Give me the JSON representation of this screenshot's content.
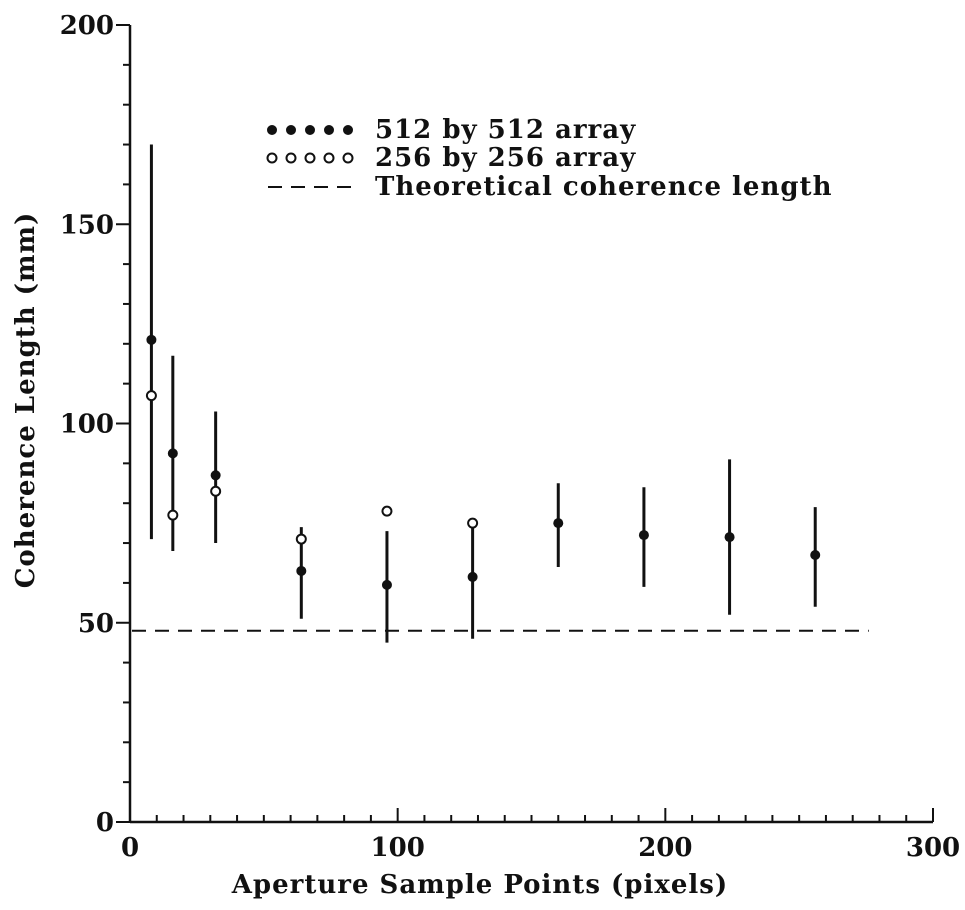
{
  "chart_data": {
    "type": "scatter",
    "xlabel": "Aperture Sample Points (pixels)",
    "ylabel": "Coherence Length (mm)",
    "xlim": [
      0,
      300
    ],
    "ylim": [
      0,
      200
    ],
    "x_ticks": [
      "0",
      "100",
      "200",
      "300"
    ],
    "y_ticks": [
      "0",
      "50",
      "100",
      "150",
      "200"
    ],
    "x_minor_step": 10,
    "y_minor_step": 10,
    "grid": false,
    "legend_position": "top-center",
    "legend": [
      {
        "label": "512 by 512 array",
        "marker": "filled-circle"
      },
      {
        "label": "256 by 256 array",
        "marker": "open-circle"
      },
      {
        "label": "Theoretical coherence length",
        "marker": "dashed-line"
      }
    ],
    "series": [
      {
        "name": "512 by 512 array",
        "marker": "filled-circle",
        "points": [
          {
            "x": 8,
            "y": 121,
            "err_low": 71,
            "err_high": 170
          },
          {
            "x": 16,
            "y": 92.5,
            "err_low": 68,
            "err_high": 117
          },
          {
            "x": 32,
            "y": 87,
            "err_low": 70,
            "err_high": 103
          },
          {
            "x": 64,
            "y": 63,
            "err_low": 51,
            "err_high": 74
          },
          {
            "x": 96,
            "y": 59.5,
            "err_low": 45,
            "err_high": 73
          },
          {
            "x": 128,
            "y": 61.5,
            "err_low": 46,
            "err_high": 75
          },
          {
            "x": 160,
            "y": 75,
            "err_low": 64,
            "err_high": 85
          },
          {
            "x": 192,
            "y": 72,
            "err_low": 59,
            "err_high": 84
          },
          {
            "x": 224,
            "y": 71.5,
            "err_low": 52,
            "err_high": 91
          },
          {
            "x": 256,
            "y": 67,
            "err_low": 54,
            "err_high": 79
          }
        ]
      },
      {
        "name": "256 by 256 array",
        "marker": "open-circle",
        "points": [
          {
            "x": 8,
            "y": 107
          },
          {
            "x": 16,
            "y": 77
          },
          {
            "x": 32,
            "y": 83
          },
          {
            "x": 64,
            "y": 71
          },
          {
            "x": 96,
            "y": 78
          },
          {
            "x": 128,
            "y": 75
          }
        ]
      }
    ],
    "reference_line": {
      "name": "Theoretical coherence length",
      "style": "dashed",
      "y": 48,
      "x_range": [
        0,
        276
      ]
    }
  }
}
